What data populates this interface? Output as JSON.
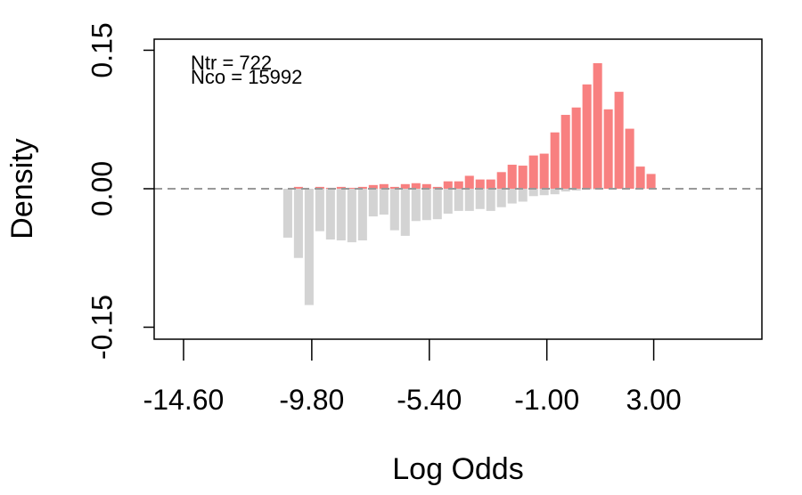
{
  "chart_data": {
    "type": "mirrored_histogram",
    "xlabel": "Log Odds",
    "ylabel": "Density",
    "annotations": [
      "Ntr = 722",
      "Nco =  15992"
    ],
    "bins": [
      -10.9,
      -10.5,
      -10.1,
      -9.7,
      -9.3,
      -8.9,
      -8.5,
      -8.1,
      -7.7,
      -7.3,
      -6.9,
      -6.5,
      -6.1,
      -5.7,
      -5.3,
      -4.9,
      -4.5,
      -4.1,
      -3.7,
      -3.3,
      -2.9,
      -2.5,
      -2.1,
      -1.7,
      -1.3,
      -0.9,
      -0.5,
      -0.1,
      0.3,
      0.7,
      1.1,
      1.5,
      1.9,
      2.3,
      2.7,
      3.1
    ],
    "series": [
      {
        "name": "Ntr",
        "color": "#f88080",
        "values": [
          0,
          0.002,
          0,
          0.002,
          0.001,
          0.002,
          0.001,
          0.002,
          0.004,
          0.005,
          0.002,
          0.005,
          0.006,
          0.005,
          0.002,
          0.008,
          0.008,
          0.014,
          0.01,
          0.01,
          0.018,
          0.026,
          0.025,
          0.036,
          0.038,
          0.061,
          0.08,
          0.088,
          0.113,
          0.136,
          0.086,
          0.105,
          0.065,
          0.024,
          0.016
        ]
      },
      {
        "name": "Nco",
        "color": "#d3d3d3",
        "values": [
          -0.053,
          -0.075,
          -0.126,
          -0.046,
          -0.055,
          -0.056,
          -0.058,
          -0.056,
          -0.03,
          -0.028,
          -0.045,
          -0.051,
          -0.035,
          -0.034,
          -0.033,
          -0.027,
          -0.024,
          -0.024,
          -0.022,
          -0.024,
          -0.02,
          -0.016,
          -0.014,
          -0.008,
          -0.007,
          -0.006,
          -0.003,
          -0.002,
          -0.001,
          -0.001,
          0,
          0,
          0,
          0,
          0
        ]
      }
    ],
    "xlim": [
      -15.7,
      7.05
    ],
    "xticks": [
      {
        "value": -14.6,
        "label": "-14.60"
      },
      {
        "value": -9.8,
        "label": "-9.80"
      },
      {
        "value": -5.4,
        "label": "-5.40"
      },
      {
        "value": -1.0,
        "label": "-1.00"
      },
      {
        "value": 3.0,
        "label": "3.00"
      }
    ],
    "ylim": [
      -0.163,
      0.162
    ],
    "yticks": [
      {
        "value": -0.15,
        "label": "-0.15"
      },
      {
        "value": 0,
        "label": "0.00"
      },
      {
        "value": 0.15,
        "label": "0.15"
      }
    ],
    "hline": 0
  }
}
